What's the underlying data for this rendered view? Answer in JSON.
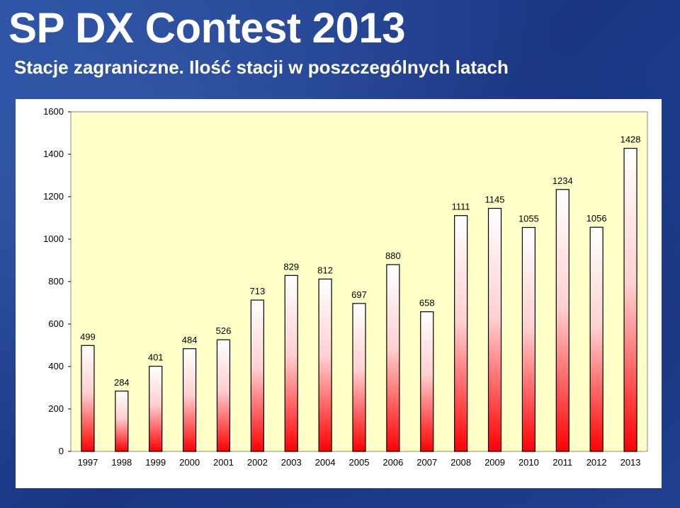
{
  "header": {
    "title": "SP DX Contest 2013",
    "subtitle": "Stacje zagraniczne. Ilość stacji w poszczególnych latach"
  },
  "colors": {
    "background": "#1f3f8e",
    "plot_area": "#ffffc8",
    "bar_top": "#ffffff",
    "bar_bottom": "#ff0000",
    "text": "#ffffff"
  },
  "chart_data": {
    "type": "bar",
    "categories": [
      "1997",
      "1998",
      "1999",
      "2000",
      "2001",
      "2002",
      "2003",
      "2004",
      "2005",
      "2006",
      "2007",
      "2008",
      "2009",
      "2010",
      "2011",
      "2012",
      "2013"
    ],
    "values": [
      499,
      284,
      401,
      484,
      526,
      713,
      829,
      812,
      697,
      880,
      658,
      1111,
      1145,
      1055,
      1234,
      1056,
      1428
    ],
    "ylim": [
      0,
      1600
    ],
    "yticks": [
      0,
      200,
      400,
      600,
      800,
      1000,
      1200,
      1400,
      1600
    ],
    "grid": false,
    "legend": "none",
    "xlabel": "",
    "ylabel": ""
  }
}
